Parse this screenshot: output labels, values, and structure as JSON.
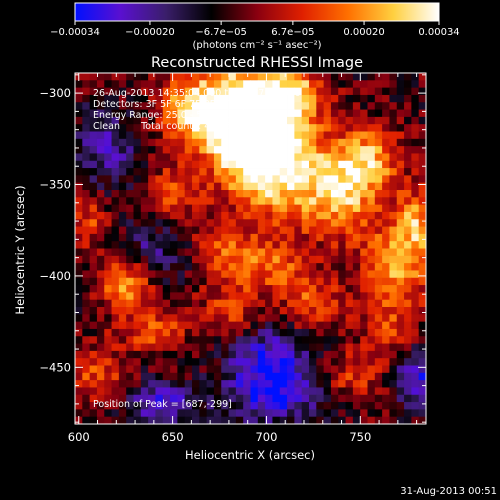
{
  "chart_data": {
    "type": "heatmap",
    "title": "Reconstructed RHESSI Image",
    "xlabel": "Heliocentric X (arcsec)",
    "ylabel": "Heliocentric Y (arcsec)",
    "xlim": [
      598,
      785
    ],
    "ylim": [
      -481,
      -289
    ],
    "x_ticks": [
      600,
      650,
      700,
      750
    ],
    "y_ticks": [
      -300,
      -350,
      -400,
      -450
    ],
    "colorbar": {
      "range": [
        -0.00034,
        0.00034
      ],
      "tick_values": [
        -0.00034,
        -0.0002,
        -6.7e-05,
        6.7e-05,
        0.0002,
        0.00034
      ],
      "tick_labels": [
        "−0.00034",
        "−0.00020",
        "−6.7e−05",
        "6.7e−05",
        "0.00020",
        "0.00034"
      ],
      "units_label": "(photons cm⁻² s⁻¹ asec⁻²)"
    },
    "colormap": [
      "#0010ff",
      "#5a10d0",
      "#3a1e6a",
      "#000000",
      "#8a0010",
      "#e02000",
      "#ff7000",
      "#ffd040",
      "#ffffff"
    ],
    "annotations": [
      "26-Aug-2013 14:35:04.000 to 14:37:20.000",
      "Detectors: 3F 5F 6F 7F 8F 9F, Att 0",
      "Energy Range: 25.0 - 50.0 keV",
      "Clean       Total counts: 4.78E+03"
    ],
    "peak_label": "Position of Peak = [687,-299]",
    "peak_position": [
      687,
      -299
    ],
    "bright_features": [
      {
        "x": 685,
        "y": -305,
        "amp": 1.0,
        "sx": 22,
        "sy": 18
      },
      {
        "x": 705,
        "y": -340,
        "amp": 0.95,
        "sx": 18,
        "sy": 22
      },
      {
        "x": 690,
        "y": -325,
        "amp": 0.9,
        "sx": 16,
        "sy": 16
      },
      {
        "x": 740,
        "y": -355,
        "amp": 0.85,
        "sx": 14,
        "sy": 16
      },
      {
        "x": 755,
        "y": -335,
        "amp": 0.7,
        "sx": 12,
        "sy": 12
      },
      {
        "x": 770,
        "y": -395,
        "amp": 0.75,
        "sx": 14,
        "sy": 16
      },
      {
        "x": 780,
        "y": -370,
        "amp": 0.7,
        "sx": 8,
        "sy": 12
      },
      {
        "x": 625,
        "y": -405,
        "amp": 0.8,
        "sx": 10,
        "sy": 10
      },
      {
        "x": 640,
        "y": -430,
        "amp": 0.55,
        "sx": 12,
        "sy": 8
      },
      {
        "x": 660,
        "y": -310,
        "amp": 0.55,
        "sx": 12,
        "sy": 10
      },
      {
        "x": 605,
        "y": -370,
        "amp": 0.45,
        "sx": 8,
        "sy": 10
      },
      {
        "x": 650,
        "y": -355,
        "amp": 0.5,
        "sx": 10,
        "sy": 12
      },
      {
        "x": 700,
        "y": -395,
        "amp": 0.55,
        "sx": 16,
        "sy": 10
      },
      {
        "x": 725,
        "y": -415,
        "amp": 0.5,
        "sx": 12,
        "sy": 10
      },
      {
        "x": 680,
        "y": -420,
        "amp": 0.45,
        "sx": 12,
        "sy": 10
      },
      {
        "x": 610,
        "y": -455,
        "amp": 0.5,
        "sx": 10,
        "sy": 12
      },
      {
        "x": 745,
        "y": -455,
        "amp": 0.45,
        "sx": 12,
        "sy": 10
      },
      {
        "x": 715,
        "y": -300,
        "amp": 0.65,
        "sx": 10,
        "sy": 8
      },
      {
        "x": 675,
        "y": -385,
        "amp": 0.45,
        "sx": 10,
        "sy": 10
      },
      {
        "x": 765,
        "y": -430,
        "amp": 0.45,
        "sx": 10,
        "sy": 10
      }
    ],
    "dark_features": [
      {
        "x": 705,
        "y": -462,
        "amp": -0.85,
        "sx": 18,
        "sy": 12
      },
      {
        "x": 645,
        "y": -470,
        "amp": -0.6,
        "sx": 14,
        "sy": 8
      },
      {
        "x": 780,
        "y": -455,
        "amp": -0.7,
        "sx": 8,
        "sy": 12
      },
      {
        "x": 615,
        "y": -330,
        "amp": -0.45,
        "sx": 14,
        "sy": 14
      },
      {
        "x": 640,
        "y": -385,
        "amp": -0.4,
        "sx": 12,
        "sy": 12
      },
      {
        "x": 700,
        "y": -440,
        "amp": -0.5,
        "sx": 14,
        "sy": 10
      }
    ]
  },
  "footer_timestamp": "31-Aug-2013 00:51"
}
